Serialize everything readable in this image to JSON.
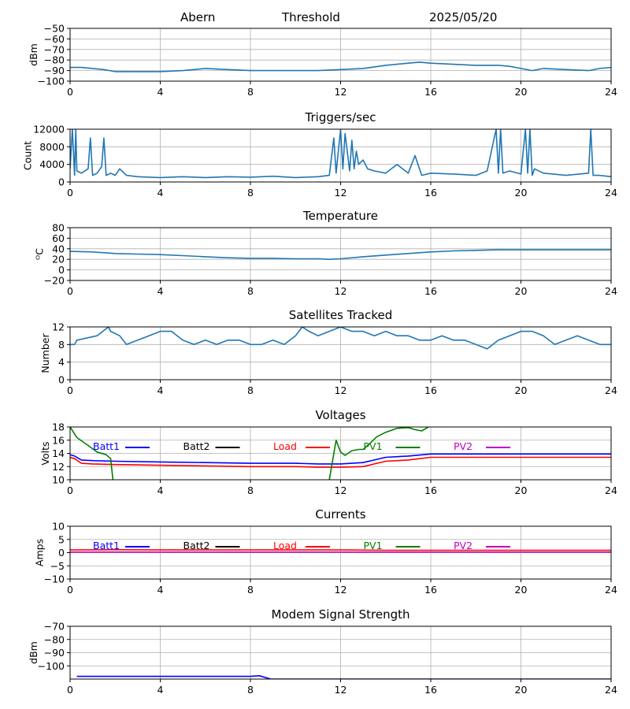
{
  "header": {
    "station": "Abern",
    "mode": "Threshold",
    "date": "2025/05/20"
  },
  "colors": {
    "default": "#1f77b4",
    "grid": "#b0b0b0",
    "batt1": "#0000ff",
    "batt2": "#000000",
    "load": "#ff0000",
    "pv1": "#008000",
    "pv2": "#bf00bf"
  },
  "chart_data": [
    {
      "type": "line",
      "title": "",
      "ylabel": "dBm",
      "xlim": [
        0,
        24
      ],
      "ylim": [
        -100,
        -50
      ],
      "xticks": [
        0,
        4,
        8,
        12,
        16,
        20,
        24
      ],
      "yticks": [
        -100,
        -90,
        -80,
        -70,
        -60,
        -50
      ],
      "grid": true,
      "series": [
        {
          "color_key": "default",
          "x": [
            0,
            0.5,
            1,
            1.5,
            2,
            3,
            4,
            5,
            5.5,
            6,
            7,
            8,
            9,
            10,
            11,
            12,
            13,
            14,
            15,
            15.5,
            16,
            17,
            18,
            19,
            19.5,
            20,
            20.5,
            21,
            22,
            23,
            23.5,
            24
          ],
          "y": [
            -87,
            -87,
            -88,
            -89,
            -91,
            -91,
            -91,
            -90,
            -89,
            -88,
            -89,
            -90,
            -90,
            -90,
            -90,
            -89,
            -88,
            -85,
            -83,
            -82,
            -83,
            -84,
            -85,
            -85,
            -86,
            -88,
            -90,
            -88,
            -89,
            -90,
            -88,
            -87
          ]
        }
      ]
    },
    {
      "type": "line",
      "title": "Triggers/sec",
      "ylabel": "Count",
      "xlim": [
        0,
        24
      ],
      "ylim": [
        0,
        12000
      ],
      "xticks": [
        0,
        4,
        8,
        12,
        16,
        20,
        24
      ],
      "yticks": [
        0,
        4000,
        8000,
        12000
      ],
      "grid": true,
      "series": [
        {
          "color_key": "default",
          "x": [
            0,
            0.1,
            0.2,
            0.25,
            0.3,
            0.5,
            0.8,
            0.9,
            1.0,
            1.2,
            1.4,
            1.5,
            1.6,
            1.8,
            2.0,
            2.2,
            2.5,
            3.0,
            4.0,
            5.0,
            6.0,
            7.0,
            8.0,
            9.0,
            10.0,
            11.0,
            11.5,
            11.7,
            11.8,
            12.0,
            12.1,
            12.2,
            12.4,
            12.5,
            12.6,
            12.7,
            12.8,
            13.0,
            13.2,
            13.5,
            14.0,
            14.5,
            15.0,
            15.3,
            15.6,
            16.0,
            17.0,
            18.0,
            18.5,
            18.9,
            19.0,
            19.1,
            19.2,
            19.5,
            20.0,
            20.2,
            20.3,
            20.4,
            20.5,
            20.6,
            21.0,
            22.0,
            23.0,
            23.1,
            23.2,
            23.5,
            24.0
          ],
          "y": [
            3000,
            12000,
            1500,
            12000,
            2500,
            2000,
            3000,
            10000,
            1500,
            2000,
            3500,
            10000,
            1500,
            2000,
            1500,
            3000,
            1500,
            1200,
            1000,
            1200,
            1000,
            1200,
            1100,
            1300,
            1000,
            1200,
            1500,
            10000,
            2000,
            12000,
            3000,
            11000,
            2500,
            9500,
            3000,
            7000,
            4000,
            5000,
            3000,
            2500,
            2000,
            4000,
            2000,
            6000,
            1500,
            2000,
            1800,
            1500,
            2500,
            12000,
            2000,
            12000,
            2000,
            2500,
            1800,
            12000,
            2000,
            12000,
            1500,
            3000,
            2000,
            1500,
            2000,
            12000,
            1500,
            1500,
            1200
          ]
        }
      ]
    },
    {
      "type": "line",
      "title": "Temperature",
      "ylabel": "ᴼC",
      "xlim": [
        0,
        24
      ],
      "ylim": [
        -20,
        80
      ],
      "xticks": [
        0,
        4,
        8,
        12,
        16,
        20,
        24
      ],
      "yticks": [
        -20,
        0,
        20,
        40,
        60,
        80
      ],
      "grid": true,
      "series": [
        {
          "color_key": "default",
          "x": [
            0,
            1,
            2,
            3,
            4,
            5,
            6,
            7,
            8,
            9,
            10,
            11,
            11.5,
            12,
            13,
            14,
            15,
            16,
            17,
            18,
            19,
            20,
            21,
            22,
            23,
            24
          ],
          "y": [
            35,
            34,
            31,
            30,
            29,
            27,
            25,
            23,
            22,
            22,
            21,
            21,
            20,
            21,
            25,
            28,
            31,
            34,
            36,
            37,
            38,
            38,
            38,
            38,
            38,
            38
          ]
        }
      ]
    },
    {
      "type": "line",
      "title": "Satellites Tracked",
      "ylabel": "Number",
      "xlim": [
        0,
        24
      ],
      "ylim": [
        0,
        12
      ],
      "xticks": [
        0,
        4,
        8,
        12,
        16,
        20,
        24
      ],
      "yticks": [
        0,
        4,
        8,
        12
      ],
      "grid": true,
      "series": [
        {
          "color_key": "default",
          "x": [
            0,
            0.2,
            0.3,
            1.2,
            1.7,
            1.8,
            2.2,
            2.5,
            3.0,
            3.5,
            4.0,
            4.5,
            5.0,
            5.5,
            6.0,
            6.5,
            7.0,
            7.5,
            8.0,
            8.5,
            9.0,
            9.5,
            10.0,
            10.3,
            10.6,
            11.0,
            11.5,
            12.0,
            12.5,
            13.0,
            13.5,
            14.0,
            14.5,
            15.0,
            15.5,
            16.0,
            16.5,
            17.0,
            17.5,
            18.0,
            18.5,
            19.0,
            19.5,
            20.0,
            20.5,
            21.0,
            21.5,
            22.0,
            22.5,
            23.0,
            23.5,
            24.0
          ],
          "y": [
            8,
            8,
            9,
            10,
            12,
            11,
            10,
            8,
            9,
            10,
            11,
            11,
            9,
            8,
            9,
            8,
            9,
            9,
            8,
            8,
            9,
            8,
            10,
            12,
            11,
            10,
            11,
            12,
            11,
            11,
            10,
            11,
            10,
            10,
            9,
            9,
            10,
            9,
            9,
            8,
            7,
            9,
            10,
            11,
            11,
            10,
            8,
            9,
            10,
            9,
            8,
            8
          ]
        }
      ]
    },
    {
      "type": "line",
      "title": "Voltages",
      "ylabel": "Volts",
      "xlim": [
        0,
        24
      ],
      "ylim": [
        10,
        18
      ],
      "xticks": [
        0,
        4,
        8,
        12,
        16,
        20,
        24
      ],
      "yticks": [
        10,
        12,
        14,
        16,
        18
      ],
      "grid": true,
      "legend": [
        "Batt1",
        "Batt2",
        "Load",
        "PV1",
        "PV2"
      ],
      "series": [
        {
          "name": "Batt1",
          "color_key": "batt1",
          "x": [
            0,
            0.2,
            0.5,
            1,
            2,
            4,
            6,
            8,
            10,
            11,
            12,
            13,
            13.5,
            14,
            15,
            16,
            18,
            20,
            22,
            24
          ],
          "y": [
            13.8,
            13.6,
            13.0,
            12.9,
            12.8,
            12.7,
            12.6,
            12.5,
            12.5,
            12.4,
            12.4,
            12.6,
            13.0,
            13.4,
            13.6,
            13.9,
            13.9,
            13.9,
            13.9,
            13.9
          ]
        },
        {
          "name": "Load",
          "color_key": "load",
          "x": [
            0,
            0.2,
            0.5,
            1,
            2,
            4,
            6,
            8,
            10,
            11,
            12,
            13,
            13.5,
            14,
            15,
            16,
            18,
            20,
            22,
            24
          ],
          "y": [
            13.4,
            13.2,
            12.5,
            12.4,
            12.3,
            12.2,
            12.1,
            12.0,
            12.0,
            11.9,
            11.9,
            12.0,
            12.4,
            12.8,
            13.0,
            13.4,
            13.4,
            13.4,
            13.4,
            13.4
          ]
        },
        {
          "name": "PV1",
          "color_key": "pv1",
          "x": [
            0,
            0.3,
            0.8,
            1.2,
            1.6,
            1.8,
            1.9
          ],
          "y": [
            18.0,
            16.4,
            15.2,
            14.2,
            13.8,
            13.2,
            10.0
          ]
        },
        {
          "name": "PV1",
          "color_key": "pv1",
          "x": [
            11.5,
            11.8,
            12.0,
            12.2,
            12.5,
            12.8,
            13.0,
            13.3,
            13.6,
            14.0,
            14.5,
            15.0,
            15.3,
            15.6,
            15.9
          ],
          "y": [
            10.0,
            16.0,
            14.2,
            13.7,
            14.4,
            14.6,
            14.6,
            15.5,
            16.5,
            17.2,
            17.8,
            17.9,
            17.6,
            17.4,
            18.0
          ]
        }
      ]
    },
    {
      "type": "line",
      "title": "Currents",
      "ylabel": "Amps",
      "xlim": [
        0,
        24
      ],
      "ylim": [
        -10,
        10
      ],
      "xticks": [
        0,
        4,
        8,
        12,
        16,
        20,
        24
      ],
      "yticks": [
        -10,
        -5,
        0,
        5,
        10
      ],
      "grid": true,
      "legend": [
        "Batt1",
        "Batt2",
        "Load",
        "PV1",
        "PV2"
      ],
      "series": [
        {
          "name": "Load",
          "color_key": "load",
          "x": [
            0,
            2,
            4,
            6,
            8,
            10,
            12,
            14,
            16,
            18,
            20,
            22,
            24
          ],
          "y": [
            1.0,
            1.1,
            1.0,
            1.0,
            1.0,
            1.0,
            1.0,
            0.9,
            0.9,
            0.9,
            0.9,
            0.9,
            0.9
          ]
        },
        {
          "name": "PV2",
          "color_key": "pv2",
          "x": [
            0,
            24
          ],
          "y": [
            0.2,
            0.2
          ]
        }
      ]
    },
    {
      "type": "line",
      "title": "Modem Signal Strength",
      "ylabel": "dBm",
      "xlim": [
        0,
        24
      ],
      "ylim": [
        -110,
        -70
      ],
      "xticks": [
        0,
        4,
        8,
        12,
        16,
        20,
        24
      ],
      "yticks": [
        -100,
        -90,
        -80,
        -70
      ],
      "grid": true,
      "series": [
        {
          "color_key": "batt1",
          "x": [
            0.3,
            8,
            8.4,
            8.9,
            24
          ],
          "y": [
            -108,
            -108,
            -107.5,
            -110,
            -110
          ]
        }
      ]
    }
  ]
}
